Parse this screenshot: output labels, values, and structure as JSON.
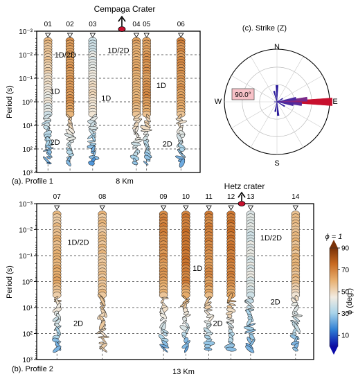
{
  "chart_data": [
    {
      "type": "scatter",
      "panel_label": "(a). Profile 1",
      "top_label": "Cempaga Crater",
      "ylabel": "Period (s)",
      "distance_label": "8 Km",
      "y_scale": "log",
      "y_inverted": true,
      "ylim": [
        0.001,
        1000
      ],
      "y_ticks": [
        "10⁻³",
        "10⁻²",
        "10⁻¹",
        "10⁰",
        "10¹",
        "10²",
        "10³"
      ],
      "grid": "horizontal dashed at each decade",
      "stations": [
        {
          "name": "01",
          "position_km": 0.55,
          "phase_top": 58,
          "phase_mid": 44,
          "phase_bottom": 22
        },
        {
          "name": "02",
          "position_km": 1.63,
          "phase_top": 65,
          "phase_mid": 66,
          "phase_bottom": 24
        },
        {
          "name": "03",
          "position_km": 2.74,
          "phase_top": 38,
          "phase_mid": 50,
          "phase_bottom": 20
        },
        {
          "name": "04",
          "position_km": 4.88,
          "phase_top": 62,
          "phase_mid": 60,
          "phase_bottom": 30
        },
        {
          "name": "05",
          "position_km": 5.38,
          "phase_top": 64,
          "phase_mid": 66,
          "phase_bottom": 22
        },
        {
          "name": "06",
          "position_km": 7.06,
          "phase_top": 68,
          "phase_mid": 64,
          "phase_bottom": 20
        }
      ],
      "annotations": [
        {
          "text": "1D/2D",
          "x_km": 1.4,
          "period": 0.01
        },
        {
          "text": "1D/2D",
          "x_km": 4.0,
          "period": 0.0065
        },
        {
          "text": "1D",
          "x_km": 0.9,
          "period": 0.35
        },
        {
          "text": "1D",
          "x_km": 3.4,
          "period": 0.7
        },
        {
          "text": "1D",
          "x_km": 6.1,
          "period": 0.2
        },
        {
          "text": "2D",
          "x_km": 0.9,
          "period": 50
        },
        {
          "text": "2D",
          "x_km": 6.4,
          "period": 60
        }
      ]
    },
    {
      "type": "scatter",
      "panel_label": "(b). Profile 2",
      "top_label": "Hetz crater",
      "ylabel": "Period (s)",
      "distance_label": "13 Km",
      "y_scale": "log",
      "y_inverted": true,
      "ylim": [
        0.001,
        1000
      ],
      "y_ticks": [
        "10⁻³",
        "10⁻²",
        "10⁻¹",
        "10⁰",
        "10¹",
        "10²",
        "10³"
      ],
      "grid": "horizontal dashed at each decade",
      "stations": [
        {
          "name": "07",
          "position_km": 0.95,
          "phase_top": 55,
          "phase_mid": 62,
          "phase_bottom": 22
        },
        {
          "name": "08",
          "position_km": 3.08,
          "phase_top": 56,
          "phase_mid": 56,
          "phase_bottom": 50
        },
        {
          "name": "09",
          "position_km": 5.95,
          "phase_top": 70,
          "phase_mid": 64,
          "phase_bottom": 24
        },
        {
          "name": "10",
          "position_km": 7.0,
          "phase_top": 72,
          "phase_mid": 70,
          "phase_bottom": 22
        },
        {
          "name": "11",
          "position_km": 8.08,
          "phase_top": 70,
          "phase_mid": 66,
          "phase_bottom": 25
        },
        {
          "name": "12",
          "position_km": 9.12,
          "phase_top": 72,
          "phase_mid": 70,
          "phase_bottom": 25
        },
        {
          "name": "13",
          "position_km": 10.04,
          "phase_top": 40,
          "phase_mid": 42,
          "phase_bottom": 22
        },
        {
          "name": "14",
          "position_km": 12.15,
          "phase_top": 58,
          "phase_mid": 56,
          "phase_bottom": 24
        }
      ],
      "annotations": [
        {
          "text": "1D/2D",
          "x_km": 1.95,
          "period": 0.03
        },
        {
          "text": "1D/2D",
          "x_km": 11.0,
          "period": 0.02
        },
        {
          "text": "1D",
          "x_km": 7.55,
          "period": 0.3
        },
        {
          "text": "2D",
          "x_km": 11.2,
          "period": 6
        },
        {
          "text": "2D",
          "x_km": 1.95,
          "period": 40
        },
        {
          "text": "2D",
          "x_km": 8.5,
          "period": 40
        }
      ]
    },
    {
      "type": "rose",
      "panel_label": "(c). Strike (Z)",
      "directions": [
        "N",
        "E",
        "S",
        "W"
      ],
      "highlight_label": "90.0°",
      "dominant_strike_deg": 90,
      "petals": [
        {
          "angle_deg": 90,
          "length": 1.0,
          "color": "#c8102e"
        },
        {
          "angle_deg": 85,
          "length": 0.55,
          "color": "#7a2a8a"
        },
        {
          "angle_deg": 95,
          "length": 0.45,
          "color": "#5a2a9a"
        },
        {
          "angle_deg": 80,
          "length": 0.35,
          "color": "#4a2aa0"
        },
        {
          "angle_deg": 100,
          "length": 0.3,
          "color": "#4a2aa0"
        },
        {
          "angle_deg": 0,
          "length": 0.3,
          "color": "#2a1a9a"
        },
        {
          "angle_deg": 175,
          "length": 0.25,
          "color": "#2a1a9a"
        },
        {
          "angle_deg": 345,
          "length": 0.2,
          "color": "#2a1a9a"
        },
        {
          "angle_deg": 190,
          "length": 0.18,
          "color": "#2a1a9a"
        },
        {
          "angle_deg": 120,
          "length": 0.16,
          "color": "#2a1a9a"
        },
        {
          "angle_deg": 60,
          "length": 0.12,
          "color": "#2a1a9a"
        },
        {
          "angle_deg": 270,
          "length": 0.05,
          "color": "#2a1a9a"
        }
      ]
    }
  ],
  "colorbar": {
    "label": "ϕ (deg.)",
    "top_label": "ϕ = 1",
    "ticks": [
      10,
      30,
      50,
      70,
      90
    ],
    "range": [
      0,
      90
    ],
    "colors": [
      "#0a0aa8",
      "#2f7fd4",
      "#a9d4ea",
      "#f2ece2",
      "#e8b070",
      "#c86a22",
      "#7a3208"
    ]
  }
}
